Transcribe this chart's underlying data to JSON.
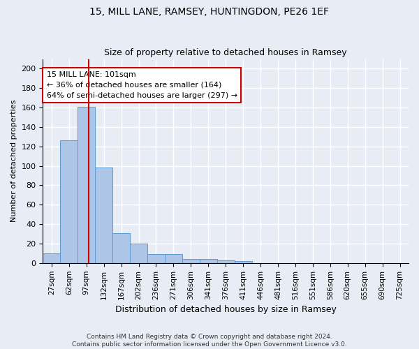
{
  "title1": "15, MILL LANE, RAMSEY, HUNTINGDON, PE26 1EF",
  "title2": "Size of property relative to detached houses in Ramsey",
  "xlabel": "Distribution of detached houses by size in Ramsey",
  "ylabel": "Number of detached properties",
  "categories": [
    "27sqm",
    "62sqm",
    "97sqm",
    "132sqm",
    "167sqm",
    "202sqm",
    "236sqm",
    "271sqm",
    "306sqm",
    "341sqm",
    "376sqm",
    "411sqm",
    "446sqm",
    "481sqm",
    "516sqm",
    "551sqm",
    "586sqm",
    "620sqm",
    "655sqm",
    "690sqm",
    "725sqm"
  ],
  "values": [
    10,
    126,
    161,
    98,
    31,
    20,
    9,
    9,
    4,
    4,
    3,
    2,
    0,
    0,
    0,
    0,
    0,
    0,
    0,
    0,
    0
  ],
  "bar_color": "#adc6e8",
  "bar_edge_color": "#5b9bd5",
  "background_color": "#e8edf5",
  "grid_color": "#ffffff",
  "annotation_line1": "15 MILL LANE: 101sqm",
  "annotation_line2": "← 36% of detached houses are smaller (164)",
  "annotation_line3": "64% of semi-detached houses are larger (297) →",
  "annotation_box_color": "#ffffff",
  "annotation_box_edge": "#cc0000",
  "ylim": [
    0,
    210
  ],
  "yticks": [
    0,
    20,
    40,
    60,
    80,
    100,
    120,
    140,
    160,
    180,
    200
  ],
  "footnote1": "Contains HM Land Registry data © Crown copyright and database right 2024.",
  "footnote2": "Contains public sector information licensed under the Open Government Licence v3.0.",
  "title1_fontsize": 10,
  "title2_fontsize": 9,
  "ylabel_fontsize": 8,
  "xlabel_fontsize": 9
}
